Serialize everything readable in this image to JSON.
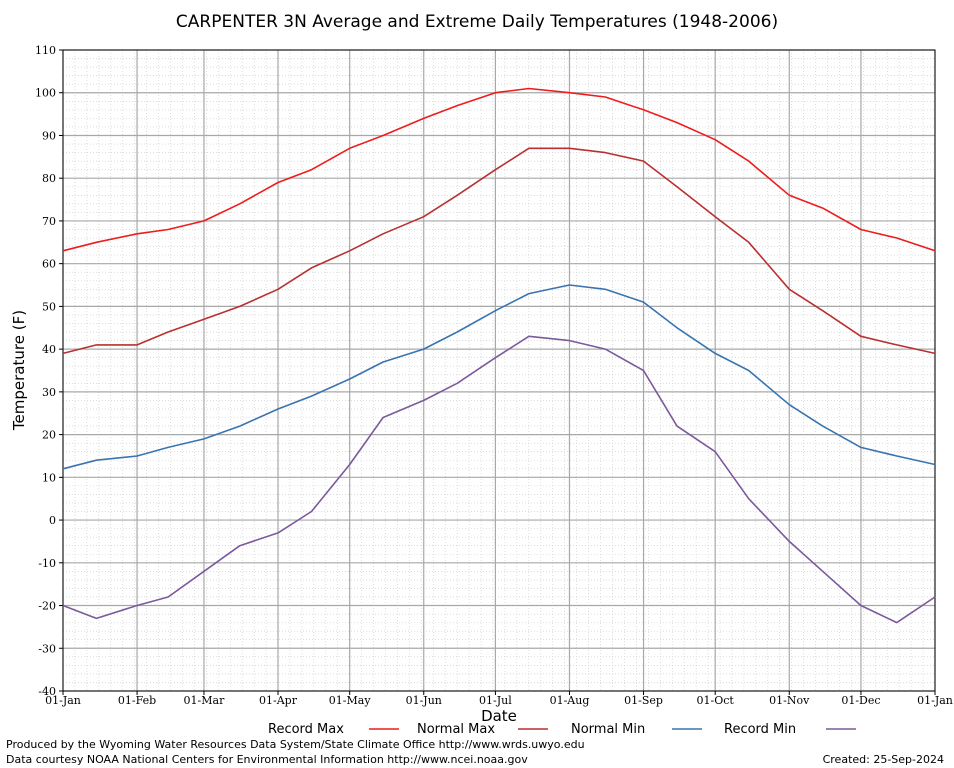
{
  "chart_data": {
    "type": "line",
    "title": "CARPENTER 3N Average and Extreme Daily Temperatures (1948-2006)",
    "xlabel": "Date",
    "ylabel": "Temperature (F)",
    "ylim": [
      -40,
      110
    ],
    "yticks": [
      -40,
      -30,
      -20,
      -10,
      0,
      10,
      20,
      30,
      40,
      50,
      60,
      70,
      80,
      90,
      100,
      110
    ],
    "xlim_day_of_year": [
      1,
      366
    ],
    "xticks": [
      {
        "label": "01-Jan",
        "day": 1
      },
      {
        "label": "01-Feb",
        "day": 32
      },
      {
        "label": "01-Mar",
        "day": 60
      },
      {
        "label": "01-Apr",
        "day": 91
      },
      {
        "label": "01-May",
        "day": 121
      },
      {
        "label": "01-Jun",
        "day": 152
      },
      {
        "label": "01-Jul",
        "day": 182
      },
      {
        "label": "01-Aug",
        "day": 213
      },
      {
        "label": "01-Sep",
        "day": 244
      },
      {
        "label": "01-Oct",
        "day": 274
      },
      {
        "label": "01-Nov",
        "day": 305
      },
      {
        "label": "01-Dec",
        "day": 335
      },
      {
        "label": "01-Jan",
        "day": 366
      }
    ],
    "grid": true,
    "legend_placement": "bottom",
    "series": [
      {
        "name": "Record Max",
        "color": "#ee1c1c",
        "x": [
          1,
          15,
          32,
          45,
          60,
          75,
          91,
          105,
          121,
          135,
          152,
          166,
          182,
          196,
          213,
          228,
          244,
          258,
          274,
          288,
          305,
          319,
          335,
          350,
          366
        ],
        "values": [
          63,
          65,
          67,
          68,
          70,
          74,
          79,
          82,
          87,
          90,
          94,
          97,
          100,
          101,
          100,
          99,
          96,
          93,
          89,
          84,
          76,
          73,
          68,
          66,
          63
        ]
      },
      {
        "name": "Normal Max",
        "color": "#b83030",
        "x": [
          1,
          15,
          32,
          45,
          60,
          75,
          91,
          105,
          121,
          135,
          152,
          166,
          182,
          196,
          213,
          228,
          244,
          258,
          274,
          288,
          305,
          319,
          335,
          350,
          366
        ],
        "values": [
          39,
          41,
          41,
          44,
          47,
          50,
          54,
          59,
          63,
          67,
          71,
          76,
          82,
          87,
          87,
          86,
          84,
          78,
          71,
          65,
          54,
          49,
          43,
          41,
          39
        ]
      },
      {
        "name": "Normal Min",
        "color": "#3a74b0",
        "x": [
          1,
          15,
          32,
          45,
          60,
          75,
          91,
          105,
          121,
          135,
          152,
          166,
          182,
          196,
          213,
          228,
          244,
          258,
          274,
          288,
          305,
          319,
          335,
          350,
          366
        ],
        "values": [
          12,
          14,
          15,
          17,
          19,
          22,
          26,
          29,
          33,
          37,
          40,
          44,
          49,
          53,
          55,
          54,
          51,
          45,
          39,
          35,
          27,
          22,
          17,
          15,
          13
        ]
      },
      {
        "name": "Record Min",
        "color": "#7a5a9c",
        "x": [
          1,
          15,
          32,
          45,
          60,
          75,
          91,
          105,
          121,
          135,
          152,
          166,
          182,
          196,
          213,
          228,
          244,
          258,
          274,
          288,
          305,
          319,
          335,
          350,
          366
        ],
        "values": [
          -20,
          -23,
          -20,
          -18,
          -12,
          -6,
          -3,
          2,
          13,
          24,
          28,
          32,
          38,
          43,
          42,
          40,
          35,
          22,
          16,
          5,
          -5,
          -12,
          -20,
          -24,
          -18
        ]
      }
    ],
    "footer": {
      "left_line1": "Produced by the Wyoming Water Resources Data System/State Climate Office http://www.wrds.uwyo.edu",
      "left_line2": "Data courtesy NOAA National Centers for Environmental Information http://www.ncei.noaa.gov",
      "created": "Created:  25-Sep-2024"
    }
  }
}
